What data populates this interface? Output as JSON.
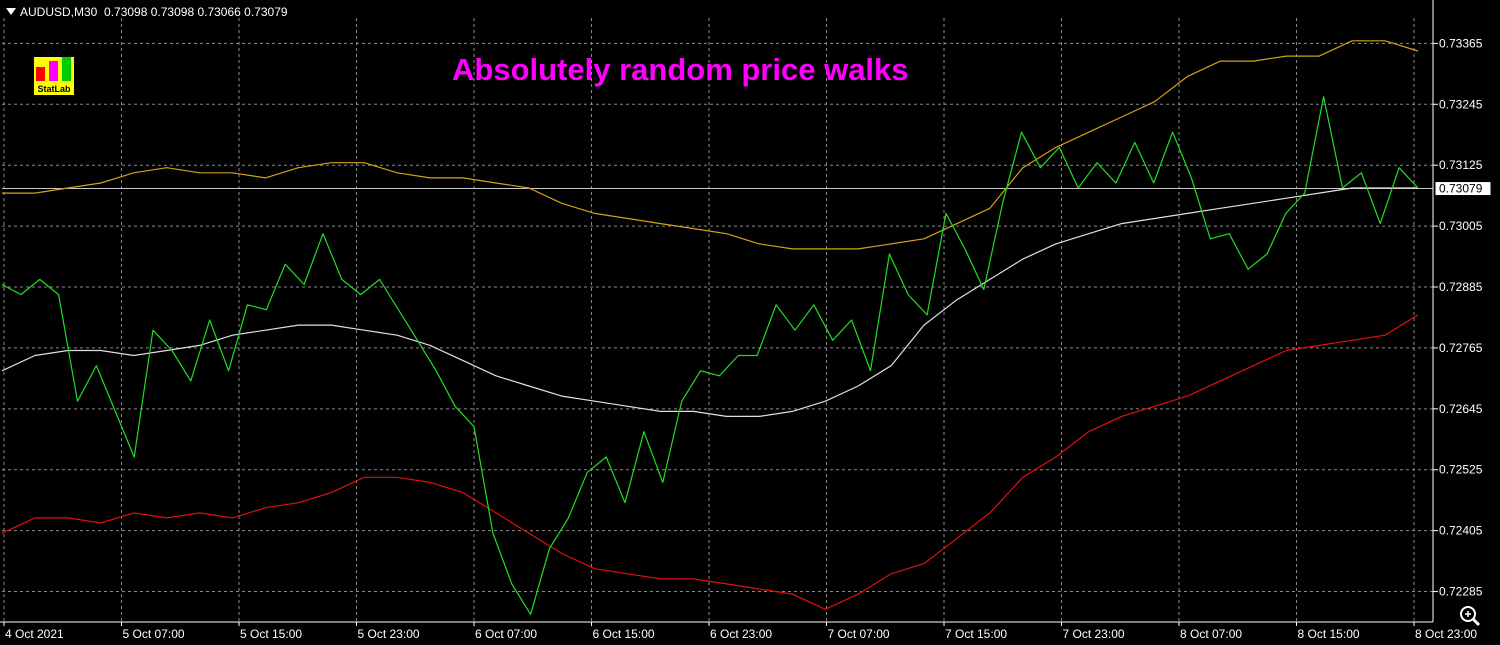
{
  "header": {
    "symbol": "AUDUSD,M30",
    "ohlc": "0.73098 0.73098 0.73066 0.73079"
  },
  "title": "Absolutely random price walks",
  "logo": {
    "label": "StatLab",
    "bar_colors": [
      "#ff0000",
      "#ff00ff",
      "#00cc00"
    ]
  },
  "colors": {
    "background": "#000000",
    "grid": "#8a8a8a",
    "axis": "#ffffff",
    "price": "#22dd22",
    "ma": "#e0e0e0",
    "upper": "#d4a017",
    "lower": "#e01010",
    "title": "#ff00ff"
  },
  "chart_data": {
    "type": "line",
    "ylim": [
      0.72225,
      0.73415
    ],
    "y_ticks": [
      "0.73365",
      "0.73245",
      "0.73125",
      "0.73005",
      "0.72885",
      "0.72765",
      "0.72645",
      "0.72525",
      "0.72405",
      "0.72285"
    ],
    "x_ticks": [
      "4 Oct 2021",
      "5 Oct 07:00",
      "5 Oct 15:00",
      "5 Oct 23:00",
      "6 Oct 07:00",
      "6 Oct 15:00",
      "6 Oct 23:00",
      "7 Oct 07:00",
      "7 Oct 15:00",
      "7 Oct 23:00",
      "8 Oct 07:00",
      "8 Oct 15:00",
      "8 Oct 23:00"
    ],
    "current_price": "0.73079",
    "series": [
      {
        "key": "upper",
        "values": [
          0.7307,
          0.7307,
          0.7308,
          0.7309,
          0.7311,
          0.7312,
          0.7311,
          0.7311,
          0.731,
          0.7312,
          0.7313,
          0.7313,
          0.7311,
          0.731,
          0.731,
          0.7309,
          0.7308,
          0.7305,
          0.7303,
          0.7302,
          0.7301,
          0.73,
          0.7299,
          0.7297,
          0.7296,
          0.7296,
          0.7296,
          0.7297,
          0.7298,
          0.7301,
          0.7304,
          0.7312,
          0.7316,
          0.7319,
          0.7322,
          0.7325,
          0.733,
          0.7333,
          0.7333,
          0.7334,
          0.7334,
          0.7337,
          0.7337,
          0.7335
        ]
      },
      {
        "key": "ma",
        "values": [
          0.7272,
          0.7275,
          0.7276,
          0.7276,
          0.7275,
          0.7276,
          0.7277,
          0.7279,
          0.728,
          0.7281,
          0.7281,
          0.728,
          0.7279,
          0.7277,
          0.7274,
          0.7271,
          0.7269,
          0.7267,
          0.7266,
          0.7265,
          0.7264,
          0.7264,
          0.7263,
          0.7263,
          0.7264,
          0.7266,
          0.7269,
          0.7273,
          0.7281,
          0.7286,
          0.729,
          0.7294,
          0.7297,
          0.7299,
          0.7301,
          0.7302,
          0.7303,
          0.7304,
          0.7305,
          0.7306,
          0.7307,
          0.7308,
          0.7308,
          0.7308
        ]
      },
      {
        "key": "lower",
        "values": [
          0.724,
          0.7243,
          0.7243,
          0.7242,
          0.7244,
          0.7243,
          0.7244,
          0.7243,
          0.7245,
          0.7246,
          0.7248,
          0.7251,
          0.7251,
          0.725,
          0.7248,
          0.7244,
          0.724,
          0.7236,
          0.7233,
          0.7232,
          0.7231,
          0.7231,
          0.723,
          0.7229,
          0.7228,
          0.7225,
          0.7228,
          0.7232,
          0.7234,
          0.7239,
          0.7244,
          0.7251,
          0.7255,
          0.726,
          0.7263,
          0.7265,
          0.7267,
          0.727,
          0.7273,
          0.7276,
          0.7277,
          0.7278,
          0.7279,
          0.7283
        ]
      },
      {
        "key": "price",
        "values": [
          0.7289,
          0.7287,
          0.729,
          0.7287,
          0.7266,
          0.7273,
          0.7264,
          0.7255,
          0.728,
          0.7276,
          0.727,
          0.7282,
          0.7272,
          0.7285,
          0.7284,
          0.7293,
          0.7289,
          0.7299,
          0.729,
          0.7287,
          0.729,
          0.7284,
          0.7278,
          0.7272,
          0.7265,
          0.7261,
          0.724,
          0.723,
          0.7224,
          0.7237,
          0.7243,
          0.7252,
          0.7255,
          0.7246,
          0.726,
          0.725,
          0.7266,
          0.7272,
          0.7271,
          0.7275,
          0.7275,
          0.7285,
          0.728,
          0.7285,
          0.7278,
          0.7282,
          0.7272,
          0.7295,
          0.7287,
          0.7283,
          0.7303,
          0.7296,
          0.7288,
          0.7305,
          0.7319,
          0.7312,
          0.7316,
          0.7308,
          0.7313,
          0.7309,
          0.7317,
          0.7309,
          0.7319,
          0.731,
          0.7298,
          0.7299,
          0.7292,
          0.7295,
          0.7303,
          0.7307,
          0.7326,
          0.7308,
          0.7311,
          0.7301,
          0.7312,
          0.7308
        ]
      }
    ]
  }
}
